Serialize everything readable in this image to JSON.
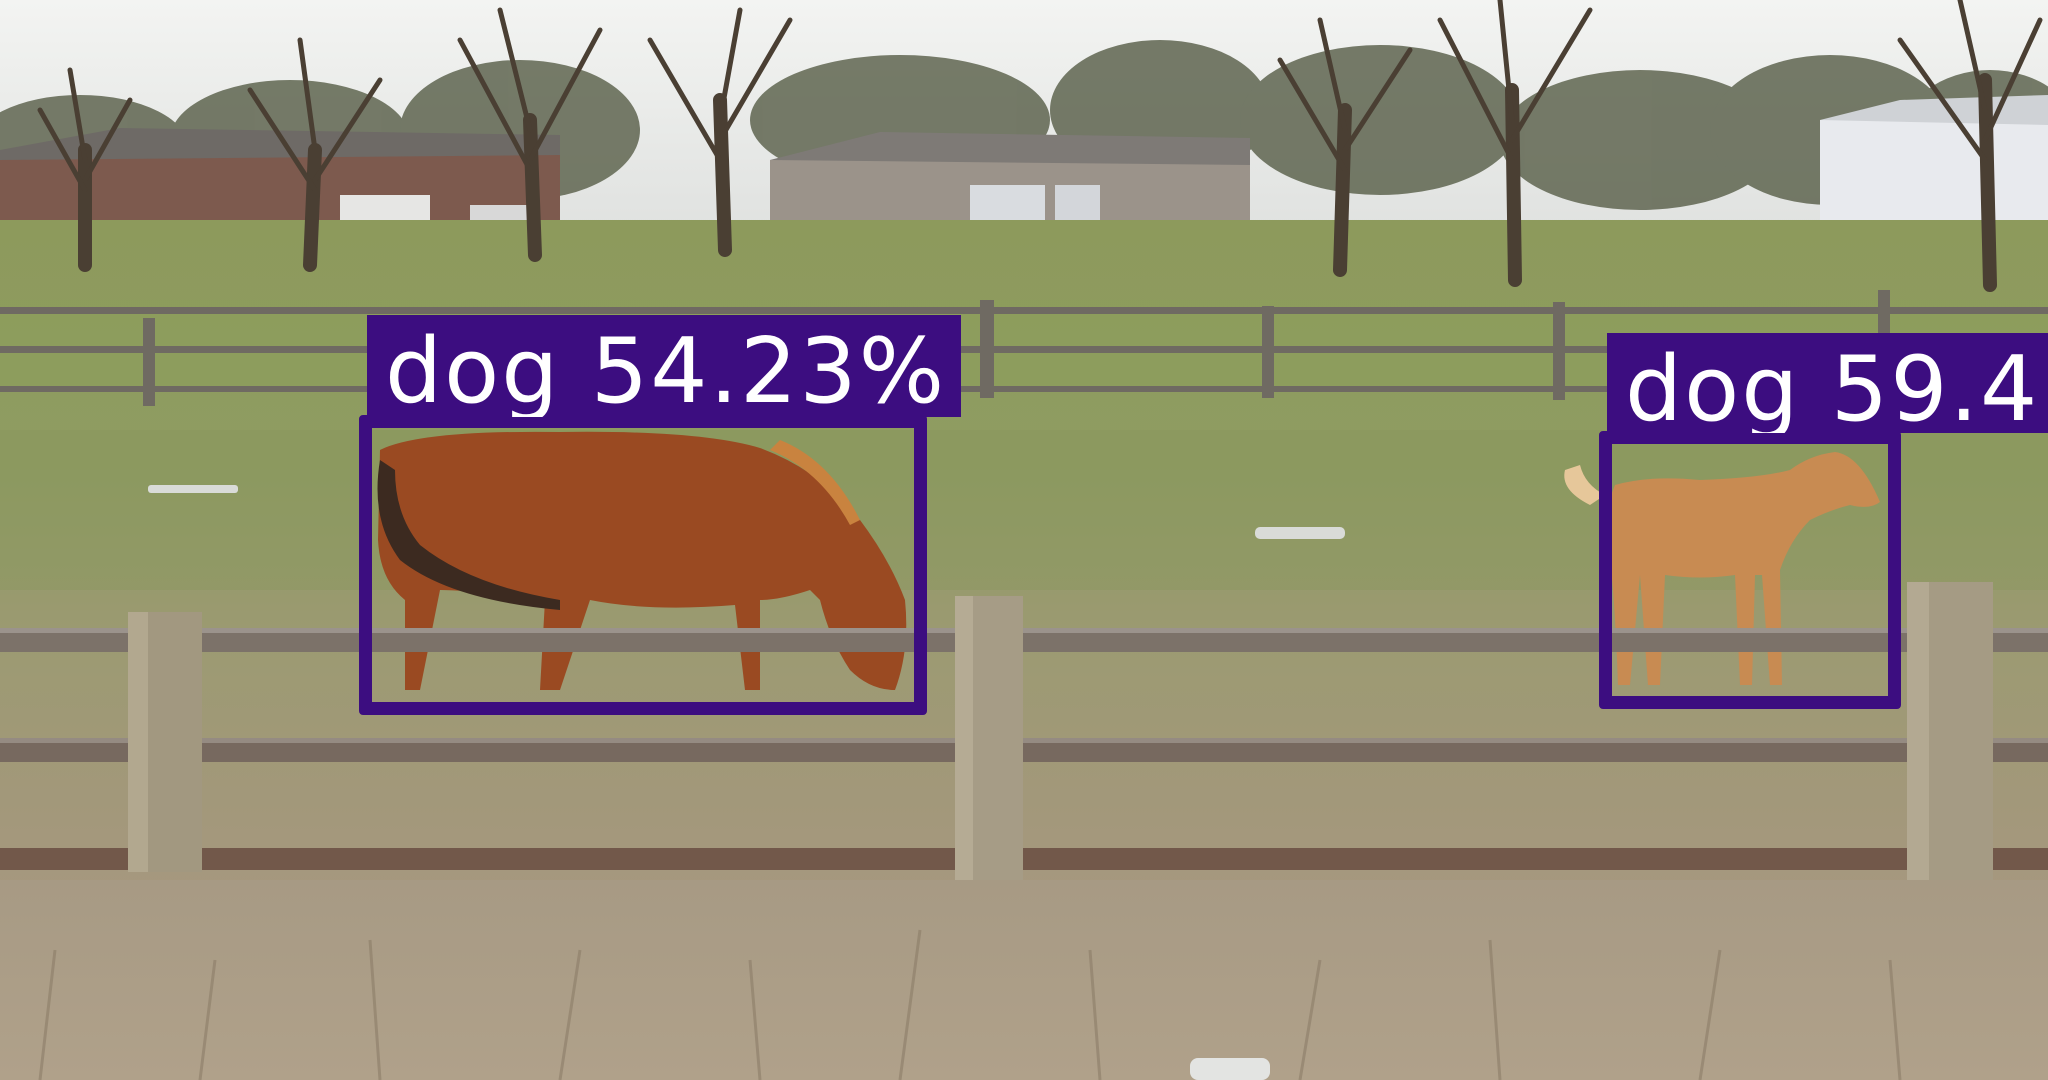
{
  "detections": [
    {
      "label": "dog 54.23%"
    },
    {
      "label": "dog 59.4"
    }
  ],
  "colors": {
    "box": "#3c0d80",
    "label_text": "#ffffff"
  }
}
